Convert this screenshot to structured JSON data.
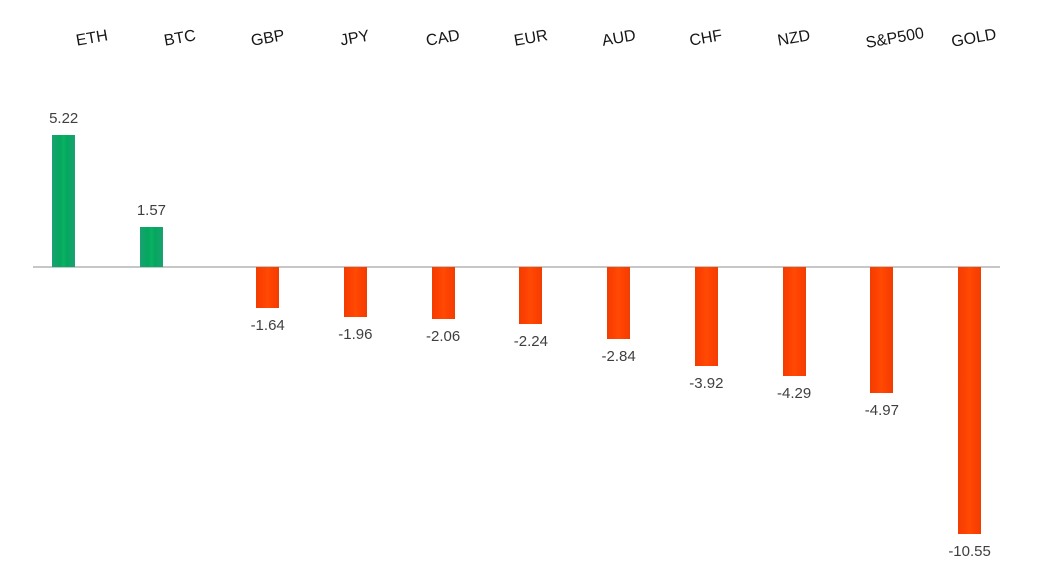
{
  "chart_data": {
    "type": "bar",
    "title": "",
    "xlabel": "",
    "ylabel": "",
    "categories": [
      "ETH",
      "BTC",
      "GBP",
      "JPY",
      "CAD",
      "EUR",
      "AUD",
      "CHF",
      "NZD",
      "S&P500",
      "GOLD"
    ],
    "values": [
      5.22,
      1.57,
      -1.64,
      -1.96,
      -2.06,
      -2.24,
      -2.84,
      -3.92,
      -4.29,
      -4.97,
      -10.55
    ],
    "value_labels": [
      "5.22",
      "1.57",
      "-1.64",
      "-1.96",
      "-2.06",
      "-2.24",
      "-2.84",
      "-3.92",
      "-4.29",
      "-4.97",
      "-10.55"
    ],
    "ylim": [
      -11.5,
      6.5
    ],
    "legend": false,
    "grid": false,
    "category_label_position": "top",
    "category_label_rotation_deg": -10,
    "colors": {
      "positive_bar": "#05a95e",
      "negative_bar": "#ff4200",
      "axis_line": "#c7c7c7",
      "value_label_text": "#3f3f3f",
      "category_label_text": "#161616",
      "background": "#ffffff"
    }
  }
}
